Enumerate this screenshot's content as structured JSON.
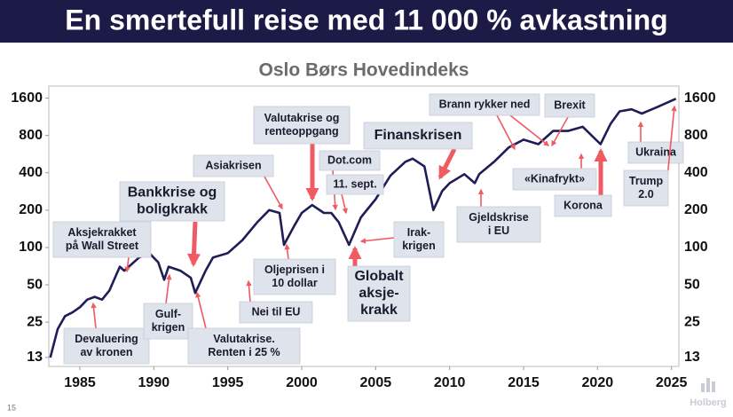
{
  "headline": "En smertefull reise med 11 000 % avkastning",
  "page_number": "15",
  "brand": "Holberg",
  "chart_data": {
    "type": "line",
    "title": "Oslo Børs Hovedindeks",
    "color": "#1f1d57",
    "log_scale": true,
    "x": [
      1983.0,
      1983.5,
      1984.0,
      1984.5,
      1985.0,
      1985.5,
      1986.0,
      1986.5,
      1987.0,
      1987.7,
      1988.0,
      1989.0,
      1989.7,
      1990.3,
      1990.7,
      1991.0,
      1991.8,
      1992.5,
      1992.8,
      1993.5,
      1994.0,
      1995.0,
      1996.0,
      1997.0,
      1997.8,
      1998.5,
      1998.8,
      1999.5,
      2000.0,
      2000.7,
      2001.5,
      2002.0,
      2002.5,
      2003.2,
      2004.0,
      2005.0,
      2006.0,
      2007.0,
      2007.5,
      2008.3,
      2008.9,
      2009.5,
      2010.0,
      2011.0,
      2011.7,
      2012.0,
      2013.0,
      2014.0,
      2015.0,
      2016.0,
      2017.0,
      2018.0,
      2019.0,
      2020.2,
      2020.9,
      2021.5,
      2022.3,
      2023.0,
      2024.0,
      2025.3
    ],
    "values": [
      13,
      22,
      28,
      30,
      33,
      38,
      40,
      38,
      45,
      70,
      65,
      83,
      90,
      76,
      55,
      70,
      65,
      57,
      43,
      65,
      83,
      90,
      115,
      160,
      200,
      190,
      105,
      150,
      190,
      220,
      190,
      190,
      160,
      105,
      175,
      245,
      380,
      490,
      520,
      450,
      200,
      285,
      330,
      390,
      330,
      390,
      490,
      640,
      740,
      680,
      870,
      870,
      940,
      680,
      1000,
      1250,
      1300,
      1200,
      1350,
      1580
    ],
    "xlim": [
      1982.9,
      2025.5
    ],
    "xticks": [
      1985,
      1990,
      1995,
      2000,
      2005,
      2010,
      2015,
      2020,
      2025
    ],
    "ylim": [
      11,
      2000
    ],
    "yticks": [
      13,
      25,
      50,
      100,
      200,
      400,
      800,
      1600
    ],
    "annotations": [
      {
        "lines": [
          "Aksjekrakket",
          "på Wall Street"
        ]
      },
      {
        "lines": [
          "Devaluering",
          "av kronen"
        ]
      },
      {
        "lines": [
          "Bankkrise og",
          "boligkrakk"
        ]
      },
      {
        "lines": [
          "Gulf-",
          "krigen"
        ]
      },
      {
        "lines": [
          "Valutakrise.",
          "Renten i 25 %"
        ]
      },
      {
        "lines": [
          "Asiakrisen"
        ]
      },
      {
        "lines": [
          "Oljeprisen i",
          "10 dollar"
        ]
      },
      {
        "lines": [
          "Nei til EU"
        ]
      },
      {
        "lines": [
          "Valutakrise og",
          "renteoppgang"
        ]
      },
      {
        "lines": [
          "Dot.com"
        ]
      },
      {
        "lines": [
          "11. sept."
        ]
      },
      {
        "lines": [
          "Finanskrisen"
        ]
      },
      {
        "lines": [
          "Globalt",
          "aksje-",
          "krakk"
        ]
      },
      {
        "lines": [
          "Irak-",
          "krigen"
        ]
      },
      {
        "lines": [
          "Brann rykker ned"
        ]
      },
      {
        "lines": [
          "Brexit"
        ]
      },
      {
        "lines": [
          "Gjeldskrise",
          "i EU"
        ]
      },
      {
        "lines": [
          "«Kinafrykt»"
        ]
      },
      {
        "lines": [
          "Korona"
        ]
      },
      {
        "lines": [
          "Ukraina"
        ]
      },
      {
        "lines": [
          "Trump",
          "2.0"
        ]
      }
    ]
  }
}
